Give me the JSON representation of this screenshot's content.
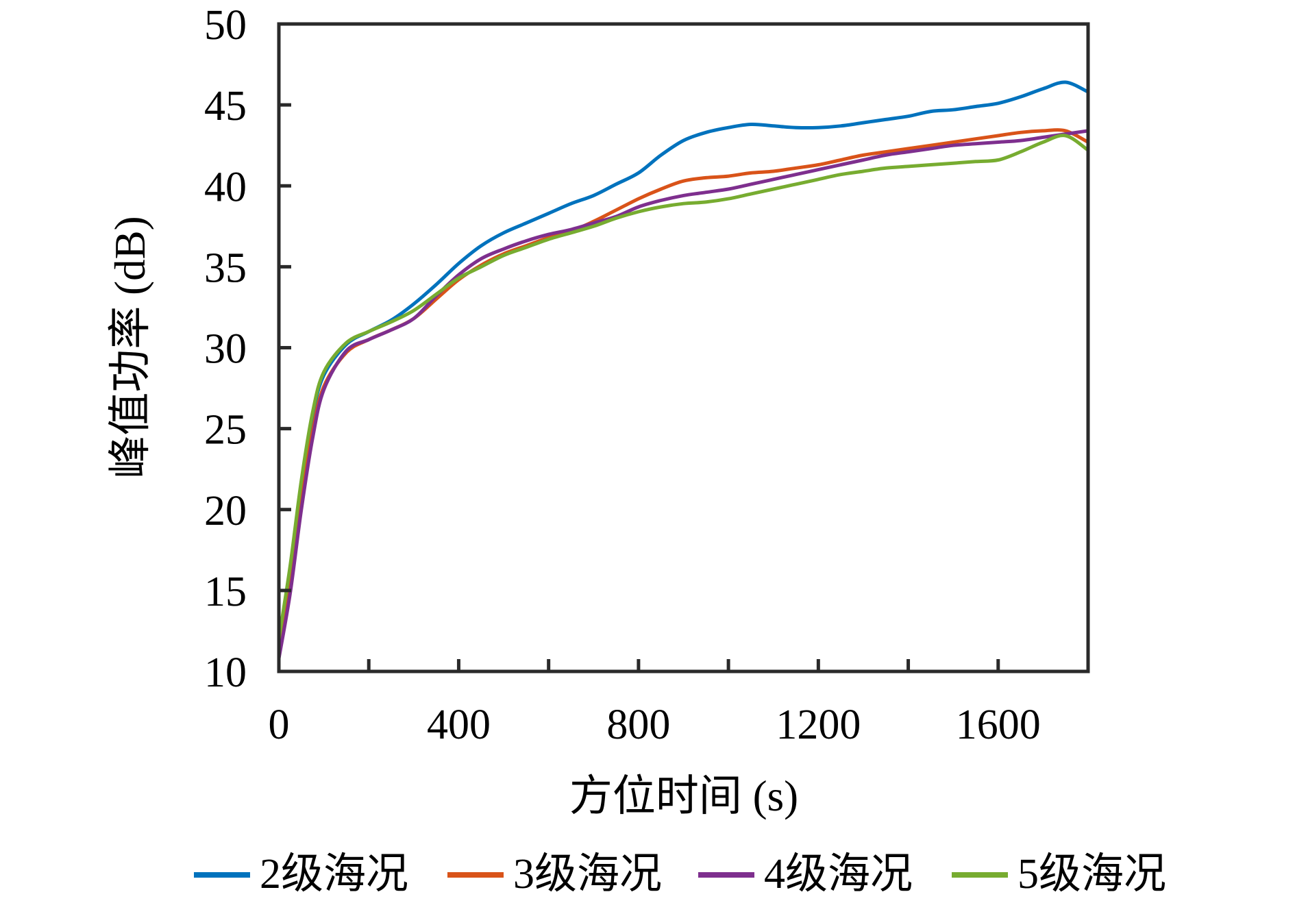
{
  "figure": {
    "background": "#ffffff",
    "axis_color": "#2a2a2a",
    "text_color": "#000000"
  },
  "chart_data": {
    "type": "line",
    "title": "",
    "xlabel": "方位时间 (s)",
    "ylabel": "峰值功率 (dB)",
    "xlim": [
      0,
      1800
    ],
    "ylim": [
      10,
      50
    ],
    "x_major_ticks": [
      0,
      400,
      800,
      1200,
      1600
    ],
    "x_minor_ticks": [
      200,
      600,
      1000,
      1400,
      1800
    ],
    "y_ticks": [
      10,
      15,
      20,
      25,
      30,
      35,
      40,
      45,
      50
    ],
    "grid": false,
    "legend_position": "bottom",
    "x": [
      0,
      25,
      50,
      75,
      100,
      150,
      200,
      250,
      300,
      350,
      400,
      450,
      500,
      550,
      600,
      650,
      700,
      750,
      800,
      850,
      900,
      950,
      1000,
      1050,
      1100,
      1150,
      1200,
      1250,
      1300,
      1350,
      1400,
      1450,
      1500,
      1550,
      1600,
      1650,
      1700,
      1750,
      1800
    ],
    "series": [
      {
        "name": "2级海况",
        "color": "#0072BD",
        "values": [
          11.3,
          16.0,
          21.5,
          25.8,
          28.3,
          30.2,
          31.0,
          31.7,
          32.7,
          33.9,
          35.2,
          36.3,
          37.1,
          37.7,
          38.3,
          38.9,
          39.4,
          40.1,
          40.8,
          41.9,
          42.8,
          43.3,
          43.6,
          43.8,
          43.7,
          43.6,
          43.6,
          43.7,
          43.9,
          44.1,
          44.3,
          44.6,
          44.7,
          44.9,
          45.1,
          45.5,
          46.0,
          46.4,
          45.8
        ]
      },
      {
        "name": "3级海况",
        "color": "#D95319",
        "values": [
          11.0,
          15.2,
          20.6,
          24.8,
          27.6,
          29.7,
          30.5,
          31.1,
          31.8,
          33.0,
          34.2,
          35.1,
          35.8,
          36.3,
          36.8,
          37.2,
          37.8,
          38.5,
          39.2,
          39.8,
          40.3,
          40.5,
          40.6,
          40.8,
          40.9,
          41.1,
          41.3,
          41.6,
          41.9,
          42.1,
          42.3,
          42.5,
          42.7,
          42.9,
          43.1,
          43.3,
          43.4,
          43.4,
          42.7
        ]
      },
      {
        "name": "4级海况",
        "color": "#7E2F8E",
        "values": [
          10.8,
          14.8,
          20.0,
          24.4,
          27.4,
          29.8,
          30.5,
          31.1,
          31.8,
          33.2,
          34.5,
          35.5,
          36.1,
          36.6,
          37.0,
          37.3,
          37.7,
          38.1,
          38.7,
          39.1,
          39.4,
          39.6,
          39.8,
          40.1,
          40.4,
          40.7,
          41.0,
          41.3,
          41.6,
          41.9,
          42.1,
          42.3,
          42.5,
          42.6,
          42.7,
          42.8,
          43.0,
          43.2,
          43.4
        ]
      },
      {
        "name": "5级海况",
        "color": "#77AC30",
        "values": [
          12.0,
          16.5,
          21.8,
          26.0,
          28.5,
          30.3,
          31.0,
          31.6,
          32.3,
          33.3,
          34.3,
          35.0,
          35.7,
          36.2,
          36.7,
          37.1,
          37.5,
          38.0,
          38.4,
          38.7,
          38.9,
          39.0,
          39.2,
          39.5,
          39.8,
          40.1,
          40.4,
          40.7,
          40.9,
          41.1,
          41.2,
          41.3,
          41.4,
          41.5,
          41.6,
          42.1,
          42.7,
          43.1,
          42.2
        ]
      }
    ]
  }
}
